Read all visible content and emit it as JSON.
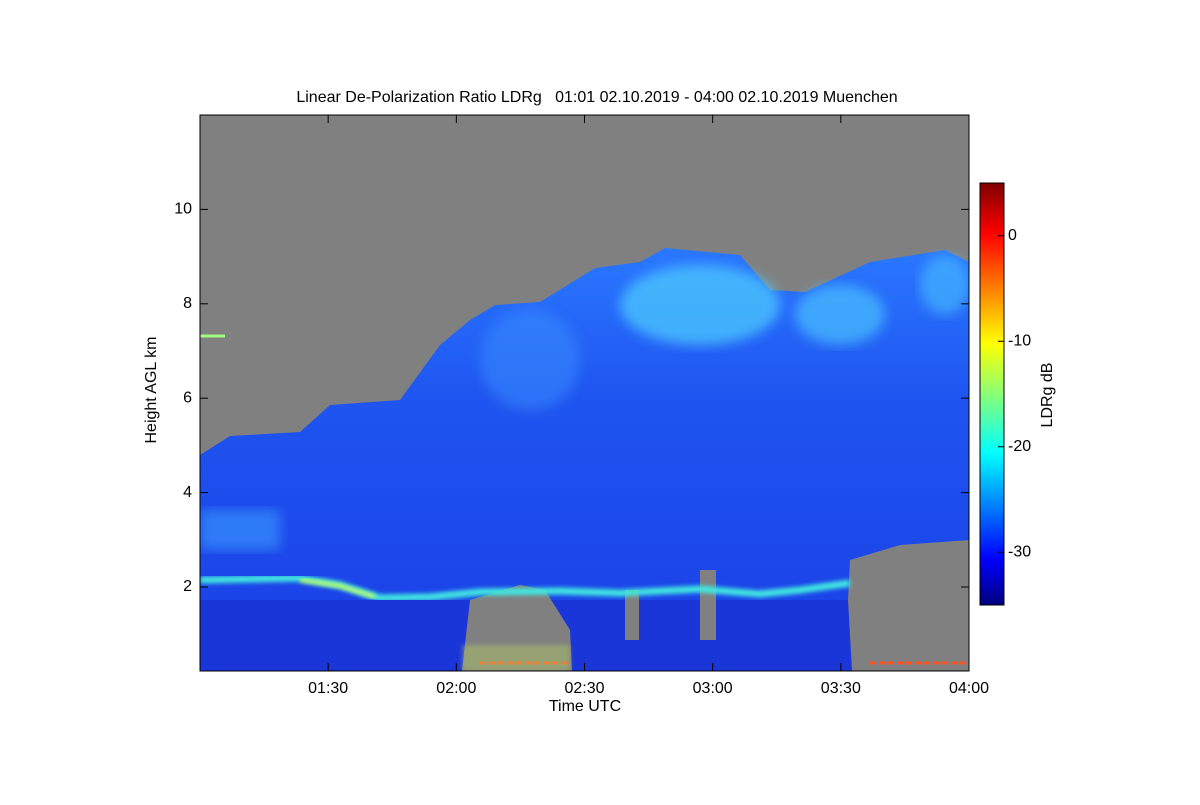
{
  "chart_data": {
    "type": "heatmap",
    "title": "Linear De-Polarization Ratio LDRg   01:01 02.10.2019 - 04:00 02.10.2019 Muenchen",
    "xlabel": "Time UTC",
    "ylabel": "Height AGL km",
    "colorbar_label": "LDRg dB",
    "xlim": [
      60,
      240
    ],
    "xticks": [
      {
        "value": 90,
        "label": "01:30"
      },
      {
        "value": 120,
        "label": "02:00"
      },
      {
        "value": 150,
        "label": "02:30"
      },
      {
        "value": 180,
        "label": "03:00"
      },
      {
        "value": 210,
        "label": "03:30"
      },
      {
        "value": 240,
        "label": "04:00"
      }
    ],
    "ylim": [
      0.22,
      12
    ],
    "yticks": [
      2,
      4,
      6,
      8,
      10
    ],
    "clim": [
      -35,
      5
    ],
    "cticks": [
      0,
      -10,
      -20,
      -30
    ],
    "colormap": "jet"
  }
}
